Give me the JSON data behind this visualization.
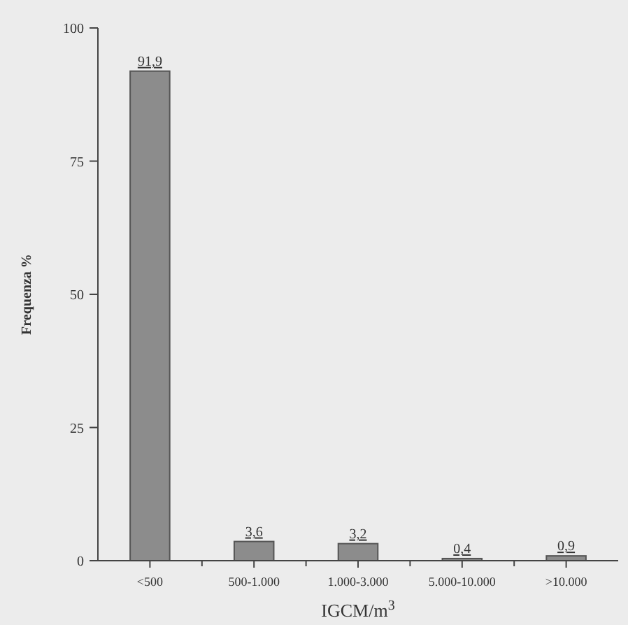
{
  "chart_data": {
    "type": "bar",
    "xlabel": "IGCM/m$^{3}$",
    "ylabel": "Frequenza %",
    "categories": [
      "<500",
      "500-1.000",
      "1.000-3.000",
      "5.000-10.000",
      ">10.000"
    ],
    "values": [
      91.9,
      3.6,
      3.2,
      0.4,
      0.9
    ],
    "value_labels": [
      "91,9",
      "3,6",
      "3,2",
      "0,4",
      "0,9"
    ],
    "color": "#8c8c8c",
    "ylim": [
      0,
      100
    ],
    "yticks": [
      0,
      25,
      50,
      75,
      100
    ],
    "grid": false
  }
}
